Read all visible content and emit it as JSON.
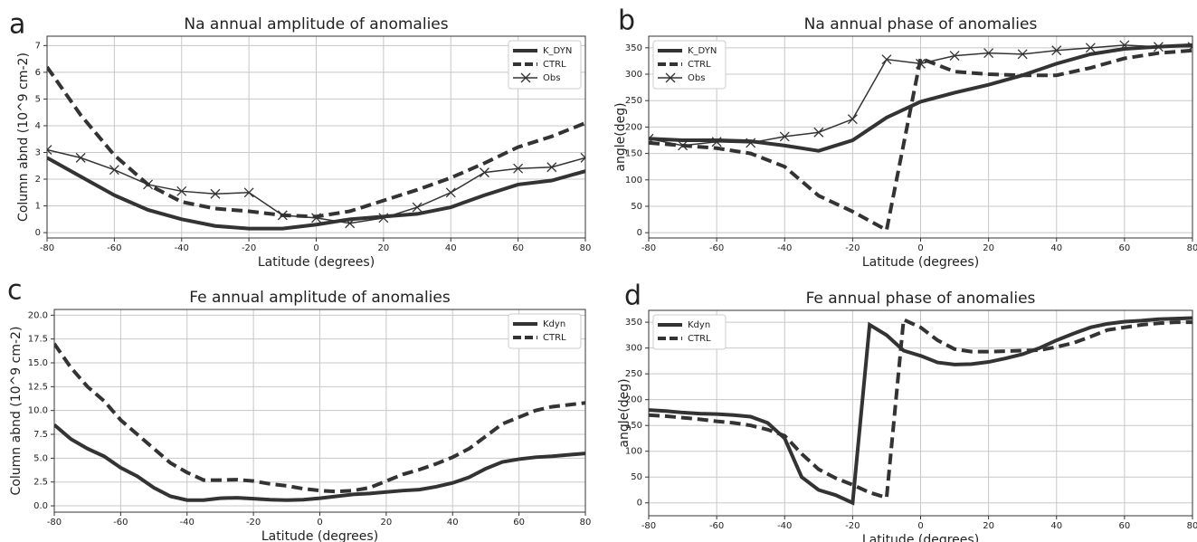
{
  "chart_data": [
    {
      "type": "line",
      "panel": "a",
      "title": "Na annual amplitude of anomalies",
      "xlabel": "Latitude (degrees)",
      "ylabel": "Column abnd (10^9 cm-2)",
      "x": [
        -80,
        -70,
        -60,
        -50,
        -40,
        -30,
        -20,
        -10,
        0,
        10,
        20,
        30,
        40,
        50,
        60,
        70,
        80
      ],
      "xlim": [
        -80,
        80
      ],
      "xticks": [
        -80,
        -60,
        -40,
        -20,
        0,
        20,
        40,
        60,
        80
      ],
      "ylim": [
        -0.2,
        7.35
      ],
      "yticks": [
        0,
        1,
        2,
        3,
        4,
        5,
        6,
        7
      ],
      "grid": true,
      "legend": "upper right",
      "series": [
        {
          "name": "K_DYN",
          "color": "#333333",
          "linestyle": "solid",
          "linewidth": 4,
          "values": [
            2.8,
            2.1,
            1.4,
            0.85,
            0.5,
            0.25,
            0.15,
            0.15,
            0.3,
            0.5,
            0.6,
            0.7,
            0.95,
            1.4,
            1.8,
            1.95,
            2.3
          ]
        },
        {
          "name": "CTRL",
          "color": "#333333",
          "linestyle": "dashed",
          "linewidth": 4,
          "values": [
            6.2,
            4.4,
            2.9,
            1.8,
            1.15,
            0.9,
            0.8,
            0.65,
            0.6,
            0.8,
            1.2,
            1.6,
            2.05,
            2.6,
            3.2,
            3.6,
            4.1
          ]
        },
        {
          "name": "Obs",
          "color": "#333333",
          "linestyle": "solid",
          "linewidth": 1.5,
          "marker": "x",
          "values": [
            3.1,
            2.8,
            2.35,
            1.8,
            1.55,
            1.45,
            1.5,
            0.65,
            0.55,
            0.35,
            0.55,
            0.95,
            1.5,
            2.25,
            2.4,
            2.45,
            2.8
          ]
        }
      ]
    },
    {
      "type": "line",
      "panel": "b",
      "title": "Na annual phase of anomalies",
      "xlabel": "Latitude (degrees)",
      "ylabel": "angle(deg)",
      "x": [
        -80,
        -70,
        -60,
        -50,
        -40,
        -30,
        -20,
        -10,
        0,
        10,
        20,
        30,
        40,
        50,
        60,
        70,
        80
      ],
      "xlim": [
        -80,
        80
      ],
      "xticks": [
        -80,
        -60,
        -40,
        -20,
        0,
        20,
        40,
        60,
        80
      ],
      "ylim": [
        -10,
        372
      ],
      "yticks": [
        0,
        50,
        100,
        150,
        200,
        250,
        300,
        350
      ],
      "grid": true,
      "legend": "upper left",
      "series": [
        {
          "name": "K_DYN",
          "color": "#333333",
          "linestyle": "solid",
          "linewidth": 4,
          "values": [
            178,
            175,
            175,
            173,
            165,
            155,
            175,
            218,
            248,
            265,
            280,
            298,
            320,
            338,
            348,
            352,
            355
          ]
        },
        {
          "name": "CTRL",
          "color": "#333333",
          "linestyle": "dashed",
          "linewidth": 4,
          "values": [
            170,
            165,
            160,
            150,
            125,
            70,
            40,
            5,
            330,
            305,
            300,
            298,
            298,
            312,
            330,
            340,
            345
          ]
        },
        {
          "name": "Obs",
          "color": "#333333",
          "linestyle": "solid",
          "linewidth": 1.5,
          "marker": "x",
          "values": [
            178,
            165,
            172,
            170,
            182,
            190,
            215,
            328,
            320,
            335,
            340,
            338,
            345,
            350,
            355,
            352,
            352
          ]
        }
      ]
    },
    {
      "type": "line",
      "panel": "c",
      "title": "Fe annual amplitude of anomalies",
      "xlabel": "Latitude (degrees)",
      "ylabel": "Column abnd (10^9 cm-2)",
      "x": [
        -80,
        -75,
        -70,
        -65,
        -60,
        -55,
        -50,
        -45,
        -40,
        -35,
        -30,
        -25,
        -20,
        -15,
        -10,
        -5,
        0,
        5,
        10,
        15,
        20,
        25,
        30,
        35,
        40,
        45,
        50,
        55,
        60,
        65,
        70,
        75,
        80
      ],
      "xlim": [
        -80,
        80
      ],
      "xticks": [
        -80,
        -60,
        -40,
        -20,
        0,
        20,
        40,
        60,
        80
      ],
      "ylim": [
        -0.66,
        20.6
      ],
      "yticks": [
        {
          "value": 0,
          "label": "0.0"
        },
        2.5,
        {
          "value": 5,
          "label": "5.0"
        },
        7.5,
        {
          "value": 10,
          "label": "10.0"
        },
        12.5,
        {
          "value": 15,
          "label": "15.0"
        },
        17.5,
        {
          "value": 20,
          "label": "20.0"
        }
      ],
      "grid": true,
      "legend": "upper right",
      "series": [
        {
          "name": "Kdyn",
          "color": "#333333",
          "linestyle": "solid",
          "linewidth": 4,
          "values": [
            8.5,
            7,
            6,
            5.2,
            4,
            3.1,
            1.9,
            1,
            0.6,
            0.6,
            0.8,
            0.85,
            0.75,
            0.65,
            0.6,
            0.65,
            0.8,
            1,
            1.2,
            1.3,
            1.45,
            1.6,
            1.7,
            2,
            2.4,
            3,
            3.9,
            4.6,
            4.9,
            5.1,
            5.2,
            5.35,
            5.5
          ]
        },
        {
          "name": "CTRL",
          "color": "#333333",
          "linestyle": "dashed",
          "linewidth": 4,
          "values": [
            17,
            14.5,
            12.5,
            11,
            9,
            7.5,
            6,
            4.5,
            3.5,
            2.7,
            2.7,
            2.75,
            2.6,
            2.3,
            2.1,
            1.8,
            1.6,
            1.5,
            1.6,
            1.9,
            2.6,
            3.3,
            3.8,
            4.4,
            5.1,
            6,
            7.3,
            8.6,
            9.3,
            10,
            10.4,
            10.6,
            10.8
          ]
        }
      ]
    },
    {
      "type": "line",
      "panel": "d",
      "title": "Fe annual phase of anomalies",
      "xlabel": "Latitude (degrees)",
      "ylabel": "angle(deg)",
      "x": [
        -80,
        -75,
        -70,
        -65,
        -60,
        -55,
        -50,
        -45,
        -40,
        -35,
        -30,
        -25,
        -20,
        -15,
        -10,
        -5,
        0,
        5,
        10,
        15,
        20,
        25,
        30,
        35,
        40,
        45,
        50,
        55,
        60,
        65,
        70,
        75,
        80
      ],
      "xlim": [
        -80,
        80
      ],
      "xticks": [
        -80,
        -60,
        -40,
        -20,
        0,
        20,
        40,
        60,
        80
      ],
      "ylim": [
        -25,
        373
      ],
      "yticks": [
        0,
        50,
        100,
        150,
        200,
        250,
        300,
        350
      ],
      "grid": true,
      "legend": "upper left",
      "series": [
        {
          "name": "Kdyn",
          "color": "#333333",
          "linestyle": "solid",
          "linewidth": 4,
          "values": [
            180,
            178,
            175,
            173,
            172,
            170,
            167,
            155,
            125,
            50,
            25,
            15,
            0,
            345,
            325,
            295,
            285,
            272,
            268,
            269,
            273,
            280,
            288,
            300,
            315,
            328,
            340,
            347,
            351,
            353,
            356,
            357,
            358
          ]
        },
        {
          "name": "CTRL",
          "color": "#333333",
          "linestyle": "dashed",
          "linewidth": 4,
          "values": [
            170,
            168,
            165,
            162,
            158,
            155,
            150,
            142,
            130,
            95,
            65,
            48,
            35,
            20,
            10,
            355,
            340,
            315,
            298,
            293,
            293,
            294,
            295,
            296,
            302,
            310,
            322,
            335,
            340,
            345,
            348,
            350,
            350
          ]
        }
      ]
    }
  ]
}
